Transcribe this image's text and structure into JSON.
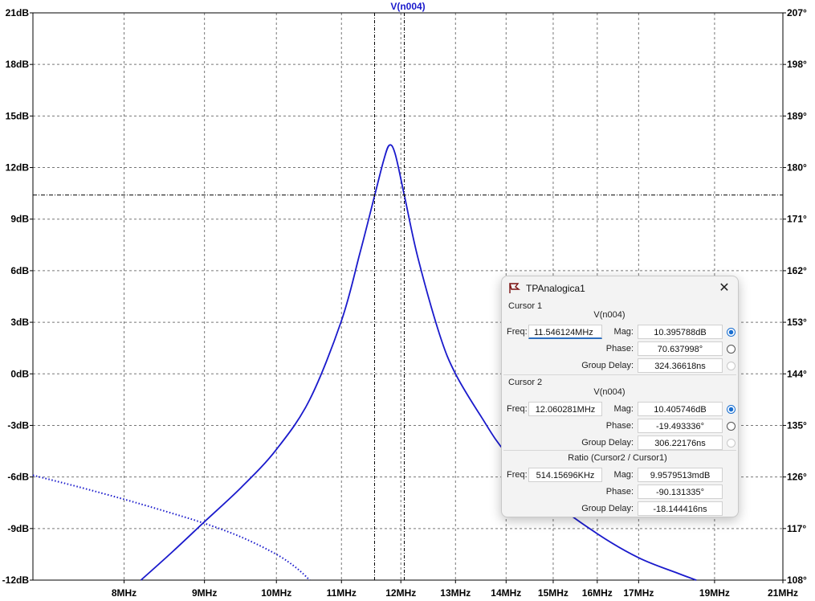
{
  "trace_label": "V(n004)",
  "chart_data": {
    "type": "line",
    "xscale": "log",
    "xlim_mhz": [
      7.0,
      21.0
    ],
    "y_left_range_db": [
      -12,
      21
    ],
    "y_right_range_deg": [
      108,
      207
    ],
    "x_tick_labels": [
      "8MHz",
      "9MHz",
      "10MHz",
      "11MHz",
      "12MHz",
      "13MHz",
      "14MHz",
      "15MHz",
      "16MHz",
      "17MHz",
      "19MHz",
      "21MHz"
    ],
    "x_tick_values_mhz": [
      8,
      9,
      10,
      11,
      12,
      13,
      14,
      15,
      16,
      17,
      19,
      21
    ],
    "y_left_tick_labels": [
      "21dB",
      "18dB",
      "15dB",
      "12dB",
      "9dB",
      "6dB",
      "3dB",
      "0dB",
      "-3dB",
      "-6dB",
      "-9dB",
      "-12dB"
    ],
    "y_left_tick_values": [
      21,
      18,
      15,
      12,
      9,
      6,
      3,
      0,
      -3,
      -6,
      -9,
      -12
    ],
    "y_right_tick_labels": [
      "207°",
      "198°",
      "189°",
      "180°",
      "171°",
      "162°",
      "153°",
      "144°",
      "135°",
      "126°",
      "117°",
      "108°"
    ],
    "y_right_tick_values": [
      207,
      198,
      189,
      180,
      171,
      162,
      153,
      144,
      135,
      126,
      117,
      108
    ],
    "grid": true,
    "series": [
      {
        "name": "magnitude",
        "style": "solid",
        "color": "#1a1acc",
        "x": [
          8.2,
          8.6,
          9.0,
          9.5,
          10.0,
          10.5,
          11.0,
          11.3,
          11.55,
          11.7,
          11.8,
          11.9,
          12.06,
          12.3,
          12.7,
          13.0,
          13.5,
          14.0,
          15.0,
          16.0,
          17.0,
          18.0,
          18.5
        ],
        "y": [
          -12.0,
          -10.3,
          -8.6,
          -6.6,
          -4.4,
          -1.5,
          3.1,
          7.0,
          10.4,
          12.4,
          13.3,
          12.8,
          10.4,
          6.8,
          2.3,
          0.0,
          -2.5,
          -4.6,
          -7.4,
          -9.3,
          -10.7,
          -11.6,
          -12.0
        ]
      },
      {
        "name": "phase",
        "style": "dotted",
        "color": "#1a1acc",
        "x": [
          7.0,
          7.5,
          8.0,
          8.5,
          9.0,
          9.5,
          10.0,
          10.3,
          10.5
        ],
        "y": [
          -5.9,
          -6.6,
          -7.3,
          -8.0,
          -8.7,
          -9.5,
          -10.5,
          -11.3,
          -12.0
        ]
      }
    ],
    "cursors": {
      "cursor1_x_mhz": 11.546124,
      "cursor2_x_mhz": 12.060281,
      "horizontal_db": 10.4
    }
  },
  "dialog": {
    "title": "TPAnalogica1",
    "cursor1": {
      "label": "Cursor 1",
      "trace": "V(n004)",
      "freq_label": "Freq:",
      "freq": "11.546124MHz",
      "mag_label": "Mag:",
      "mag": "10.395788dB",
      "phase_label": "Phase:",
      "phase": "70.637998°",
      "gd_label": "Group Delay:",
      "gd": "324.36618ns"
    },
    "cursor2": {
      "label": "Cursor 2",
      "trace": "V(n004)",
      "freq_label": "Freq:",
      "freq": "12.060281MHz",
      "mag_label": "Mag:",
      "mag": "10.405746dB",
      "phase_label": "Phase:",
      "phase": "-19.493336°",
      "gd_label": "Group Delay:",
      "gd": "306.22176ns"
    },
    "ratio": {
      "label": "Ratio (Cursor2 / Cursor1)",
      "freq_label": "Freq:",
      "freq": "514.15696KHz",
      "mag_label": "Mag:",
      "mag": "9.9579513mdB",
      "phase_label": "Phase:",
      "phase": "-90.131335°",
      "gd_label": "Group Delay:",
      "gd": "-18.144416ns"
    }
  }
}
